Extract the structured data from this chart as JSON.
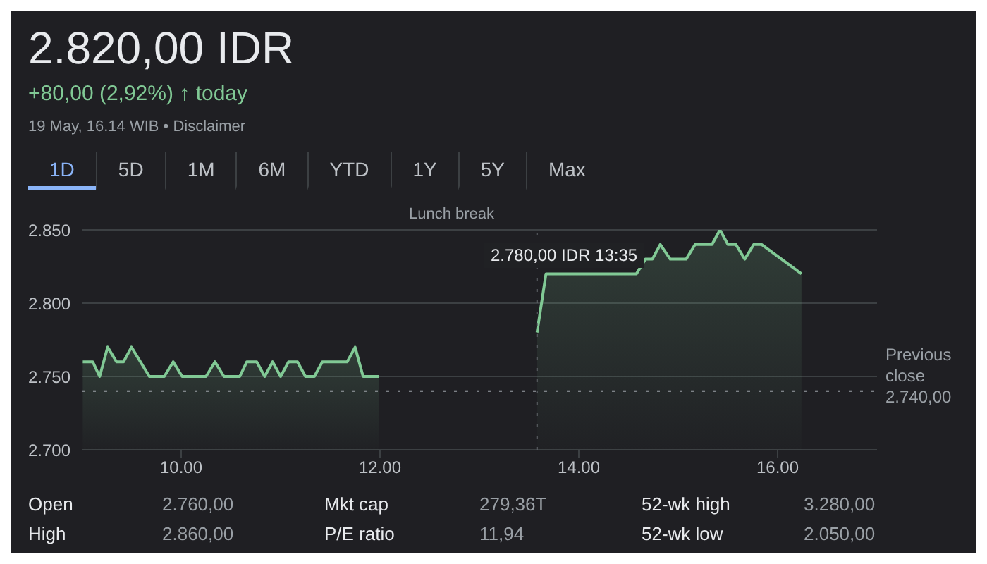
{
  "chart_data": {
    "type": "area",
    "title": "2.820,00 IDR",
    "subtitle": "+80,00 (2,92%) ↑ today",
    "annotations": [
      "19 May, 16.14 WIB • Disclaimer",
      "1D",
      "5D",
      "1M",
      "6M",
      "YTD",
      "1Y",
      "5Y",
      "Max",
      "Open",
      "2.760,00",
      "Mkt cap",
      "279,36T",
      "52-wk high",
      "3.280,00",
      "High",
      "2.860,00",
      "P/E ratio",
      "11,94",
      "52-wk low",
      "2.050,00",
      "2.780,00 IDR 13:35",
      "Lunch break"
    ],
    "series": [
      {
        "color": "#81c995",
        "x": [
          9.01,
          9.11,
          9.18,
          9.26,
          9.35,
          9.42,
          9.5,
          9.68,
          9.83,
          9.92,
          10.01,
          10.25,
          10.34,
          10.43,
          10.59,
          10.66,
          10.76,
          10.84,
          10.92,
          11.0,
          11.08,
          11.17,
          11.25,
          11.34,
          11.42,
          11.67,
          11.75,
          11.83,
          11.99
        ],
        "values": [
          2760,
          2760,
          2750,
          2770,
          2760,
          2760,
          2770,
          2750,
          2750,
          2760,
          2750,
          2750,
          2760,
          2750,
          2750,
          2760,
          2760,
          2750,
          2760,
          2750,
          2760,
          2760,
          2750,
          2750,
          2760,
          2760,
          2770,
          2750,
          2750
        ]
      },
      {
        "color": "#81c995",
        "x": [
          13.58,
          13.67,
          14.58,
          14.67,
          14.74,
          14.82,
          14.92,
          15.08,
          15.17,
          15.34,
          15.42,
          15.5,
          15.58,
          15.67,
          15.76,
          15.84,
          16.24
        ],
        "values": [
          2780,
          2820,
          2820,
          2830,
          2830,
          2840,
          2830,
          2830,
          2840,
          2840,
          2850,
          2840,
          2840,
          2830,
          2840,
          2840,
          2820
        ]
      }
    ],
    "xlim": [
      9,
      17
    ],
    "xticks": [
      {
        "value": 10,
        "label": "10.00"
      },
      {
        "value": 12,
        "label": "12.00"
      },
      {
        "value": 14,
        "label": "14.00"
      },
      {
        "value": 16,
        "label": "16.00"
      }
    ],
    "ylim": [
      2700,
      2850
    ],
    "yticks": [
      {
        "value": 2700,
        "label": "2.700"
      },
      {
        "value": 2750,
        "label": "2.750"
      },
      {
        "value": 2800,
        "label": "2.800"
      },
      {
        "value": 2850,
        "label": "2.850"
      }
    ],
    "grid": "y",
    "legend": false,
    "ref_lines": [
      {
        "axis": "y",
        "value": 2740,
        "label": "Previous close 2.740,00",
        "line_style": "dotted",
        "color": "#9aa0a6"
      },
      {
        "axis": "x",
        "value": 13.58,
        "line_style": "dotted",
        "color": "#5f6368"
      }
    ]
  }
}
